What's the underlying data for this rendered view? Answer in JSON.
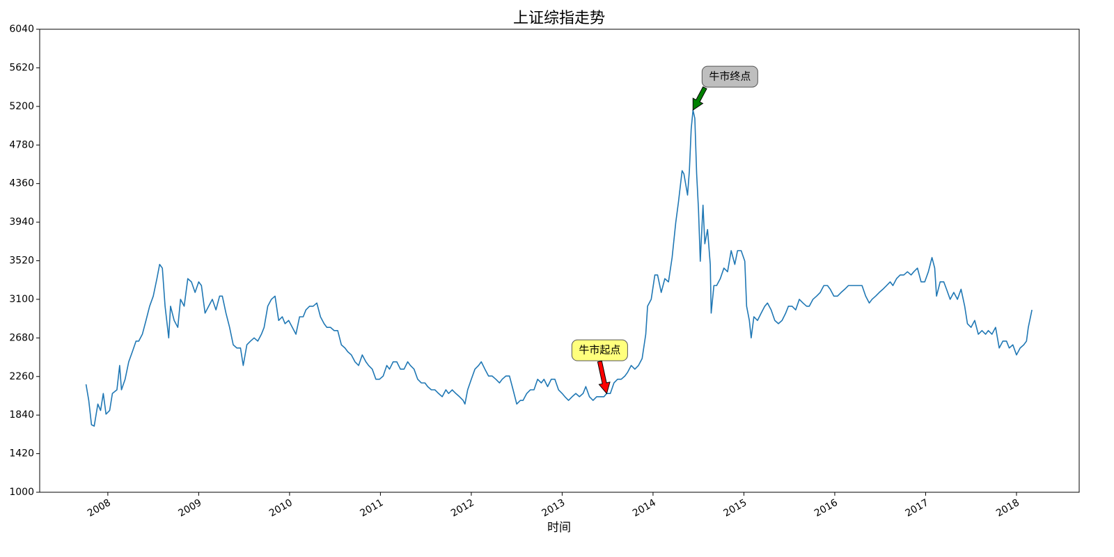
{
  "chart_data": {
    "type": "line",
    "title": "上证综指走势",
    "x_label": "时间",
    "color": "#1f77b4",
    "xlim": [
      2007.25,
      2018.69
    ],
    "xticks": [
      2008,
      2009,
      2010,
      2011,
      2012,
      2013,
      2014,
      2015,
      2016,
      2017,
      2018
    ],
    "ylim": [
      1000,
      6040
    ],
    "yticks": [
      1000,
      1420,
      1840,
      2260,
      2680,
      3100,
      3520,
      3940,
      4360,
      4780,
      5200,
      5620,
      6040
    ],
    "x": [
      2007.76,
      2007.79,
      2007.82,
      2007.85,
      2007.89,
      2007.92,
      2007.95,
      2007.98,
      2008.02,
      2008.05,
      2008.1,
      2008.13,
      2008.15,
      2008.19,
      2008.23,
      2008.27,
      2008.31,
      2008.34,
      2008.38,
      2008.42,
      2008.46,
      2008.5,
      2008.54,
      2008.57,
      2008.6,
      2008.63,
      2008.67,
      2008.69,
      2008.73,
      2008.77,
      2008.8,
      2008.84,
      2008.88,
      2008.92,
      2008.96,
      2009.0,
      2009.03,
      2009.07,
      2009.11,
      2009.15,
      2009.19,
      2009.23,
      2009.26,
      2009.3,
      2009.34,
      2009.38,
      2009.42,
      2009.46,
      2009.49,
      2009.53,
      2009.57,
      2009.61,
      2009.65,
      2009.69,
      2009.72,
      2009.76,
      2009.8,
      2009.84,
      2009.88,
      2009.92,
      2009.95,
      2009.99,
      2010.03,
      2010.07,
      2010.11,
      2010.15,
      2010.18,
      2010.22,
      2010.26,
      2010.3,
      2010.34,
      2010.38,
      2010.41,
      2010.45,
      2010.49,
      2010.53,
      2010.57,
      2010.61,
      2010.64,
      2010.68,
      2010.72,
      2010.76,
      2010.8,
      2010.84,
      2010.87,
      2010.91,
      2010.95,
      2010.99,
      2011.03,
      2011.07,
      2011.1,
      2011.14,
      2011.18,
      2011.22,
      2011.26,
      2011.3,
      2011.33,
      2011.37,
      2011.41,
      2011.45,
      2011.49,
      2011.52,
      2011.56,
      2011.6,
      2011.64,
      2011.68,
      2011.72,
      2011.75,
      2011.79,
      2011.83,
      2011.87,
      2011.91,
      2011.93,
      2011.96,
      2012.0,
      2012.04,
      2012.08,
      2012.11,
      2012.15,
      2012.19,
      2012.23,
      2012.27,
      2012.31,
      2012.34,
      2012.38,
      2012.42,
      2012.46,
      2012.5,
      2012.54,
      2012.57,
      2012.61,
      2012.65,
      2012.69,
      2012.73,
      2012.77,
      2012.8,
      2012.84,
      2012.88,
      2012.92,
      2012.96,
      2013.0,
      2013.03,
      2013.07,
      2013.11,
      2013.15,
      2013.19,
      2013.23,
      2013.26,
      2013.3,
      2013.34,
      2013.38,
      2013.42,
      2013.46,
      2013.49,
      2013.53,
      2013.57,
      2013.61,
      2013.65,
      2013.69,
      2013.72,
      2013.76,
      2013.8,
      2013.84,
      2013.88,
      2013.92,
      2013.94,
      2013.98,
      2014.02,
      2014.05,
      2014.09,
      2014.13,
      2014.17,
      2014.21,
      2014.25,
      2014.28,
      2014.32,
      2014.34,
      2014.38,
      2014.4,
      2014.42,
      2014.44,
      2014.46,
      2014.48,
      2014.5,
      2014.52,
      2014.55,
      2014.57,
      2014.6,
      2014.63,
      2014.64,
      2014.67,
      2014.7,
      2014.74,
      2014.78,
      2014.82,
      2014.86,
      2014.9,
      2014.93,
      2014.97,
      2015.01,
      2015.03,
      2015.06,
      2015.08,
      2015.11,
      2015.15,
      2015.19,
      2015.23,
      2015.26,
      2015.3,
      2015.34,
      2015.38,
      2015.42,
      2015.46,
      2015.49,
      2015.53,
      2015.57,
      2015.61,
      2015.65,
      2015.69,
      2015.72,
      2015.76,
      2015.8,
      2015.84,
      2015.88,
      2015.92,
      2015.95,
      2015.99,
      2016.03,
      2016.07,
      2016.11,
      2016.15,
      2016.18,
      2016.22,
      2016.26,
      2016.3,
      2016.34,
      2016.38,
      2016.41,
      2016.45,
      2016.49,
      2016.53,
      2016.57,
      2016.61,
      2016.64,
      2016.68,
      2016.72,
      2016.76,
      2016.8,
      2016.84,
      2016.87,
      2016.91,
      2016.95,
      2016.99,
      2017.03,
      2017.07,
      2017.1,
      2017.12,
      2017.16,
      2017.2,
      2017.23,
      2017.27,
      2017.31,
      2017.35,
      2017.39,
      2017.43,
      2017.46,
      2017.5,
      2017.54,
      2017.58,
      2017.62,
      2017.66,
      2017.69,
      2017.73,
      2017.77,
      2017.81,
      2017.85,
      2017.89,
      2017.92,
      2017.96,
      2018.0,
      2018.04,
      2018.08,
      2018.11,
      2018.13,
      2018.17
    ],
    "values": [
      2175,
      2000,
      1735,
      1720,
      1960,
      1890,
      2075,
      1850,
      1890,
      2075,
      2115,
      2380,
      2115,
      2230,
      2420,
      2530,
      2645,
      2645,
      2720,
      2870,
      3025,
      3135,
      3325,
      3480,
      3440,
      3025,
      2680,
      3025,
      2870,
      2795,
      3100,
      3025,
      3325,
      3290,
      3175,
      3290,
      3250,
      2950,
      3025,
      3100,
      2985,
      3135,
      3135,
      2950,
      2795,
      2605,
      2570,
      2570,
      2380,
      2605,
      2645,
      2680,
      2645,
      2720,
      2795,
      3025,
      3100,
      3135,
      2870,
      2910,
      2835,
      2870,
      2795,
      2720,
      2910,
      2910,
      2985,
      3025,
      3025,
      3060,
      2910,
      2835,
      2795,
      2795,
      2760,
      2760,
      2605,
      2570,
      2530,
      2495,
      2420,
      2380,
      2495,
      2420,
      2380,
      2340,
      2230,
      2230,
      2265,
      2380,
      2340,
      2420,
      2420,
      2340,
      2340,
      2420,
      2380,
      2340,
      2230,
      2190,
      2190,
      2150,
      2115,
      2115,
      2075,
      2040,
      2115,
      2075,
      2115,
      2075,
      2040,
      2000,
      1960,
      2115,
      2230,
      2340,
      2380,
      2420,
      2340,
      2265,
      2265,
      2230,
      2190,
      2230,
      2265,
      2265,
      2115,
      1960,
      2000,
      2000,
      2075,
      2115,
      2115,
      2230,
      2190,
      2230,
      2150,
      2230,
      2230,
      2115,
      2075,
      2040,
      2000,
      2040,
      2075,
      2040,
      2075,
      2150,
      2040,
      2000,
      2040,
      2040,
      2040,
      2075,
      2075,
      2190,
      2230,
      2230,
      2265,
      2305,
      2380,
      2340,
      2380,
      2455,
      2720,
      3025,
      3100,
      3365,
      3365,
      3175,
      3325,
      3290,
      3555,
      3935,
      4160,
      4500,
      4465,
      4235,
      4500,
      4955,
      5160,
      5070,
      4465,
      4085,
      3515,
      4125,
      3705,
      3860,
      3480,
      2950,
      3250,
      3250,
      3325,
      3440,
      3400,
      3630,
      3480,
      3630,
      3630,
      3515,
      3025,
      2870,
      2680,
      2910,
      2870,
      2950,
      3025,
      3060,
      2985,
      2870,
      2835,
      2870,
      2950,
      3025,
      3025,
      2985,
      3100,
      3060,
      3025,
      3025,
      3100,
      3135,
      3175,
      3250,
      3250,
      3210,
      3135,
      3135,
      3175,
      3210,
      3250,
      3250,
      3250,
      3250,
      3250,
      3135,
      3060,
      3100,
      3135,
      3175,
      3210,
      3250,
      3290,
      3250,
      3325,
      3365,
      3365,
      3400,
      3365,
      3400,
      3440,
      3290,
      3290,
      3400,
      3555,
      3440,
      3135,
      3290,
      3290,
      3210,
      3100,
      3175,
      3100,
      3210,
      3025,
      2835,
      2795,
      2870,
      2720,
      2760,
      2720,
      2760,
      2720,
      2795,
      2570,
      2645,
      2645,
      2570,
      2605,
      2495,
      2570,
      2605,
      2645,
      2795,
      2985
    ],
    "annotations": [
      {
        "text": "牛市起点",
        "x": 2013.49,
        "y": 2075,
        "arrow_color": "#ff0000",
        "box_color": "#ffff66"
      },
      {
        "text": "牛市终点",
        "x": 2014.44,
        "y": 5160,
        "arrow_color": "#008000",
        "box_color": "#b3b3b3"
      }
    ]
  }
}
